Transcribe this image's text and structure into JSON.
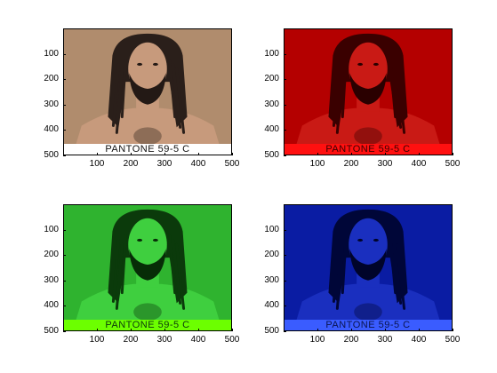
{
  "panels": [
    {
      "id": "original",
      "bg": "#b08c6d",
      "skin": "#c79a7c",
      "hair": "#2a1f1a",
      "beard": "#231915",
      "caption_bg": "#ffffff",
      "caption_color": "#111111",
      "caption": "PANTONE 59-5 C",
      "yticks": [
        "100",
        "200",
        "300",
        "400",
        "500"
      ],
      "xticks": [
        "100",
        "200",
        "300",
        "400",
        "500"
      ]
    },
    {
      "id": "red-channel",
      "bg": "#b40000",
      "skin": "#c91a15",
      "hair": "#3a0000",
      "beard": "#2a0000",
      "caption_bg": "#ff1010",
      "caption_color": "#3a0000",
      "caption": "PANTONE 59-5 C",
      "yticks": [
        "100",
        "200",
        "300",
        "400",
        "500"
      ],
      "xticks": [
        "100",
        "200",
        "300",
        "400",
        "500"
      ]
    },
    {
      "id": "green-channel",
      "bg": "#2fb32f",
      "skin": "#3fcf3f",
      "hair": "#0b3a0b",
      "beard": "#072c07",
      "caption_bg": "#6cff00",
      "caption_color": "#0c3a0c",
      "caption": "PANTONE 59-5 C",
      "yticks": [
        "100",
        "200",
        "300",
        "400",
        "500"
      ],
      "xticks": [
        "100",
        "200",
        "300",
        "400",
        "500"
      ]
    },
    {
      "id": "blue-channel",
      "bg": "#0a1ca3",
      "skin": "#1a2fbf",
      "hair": "#000638",
      "beard": "#00042a",
      "caption_bg": "#3a5cff",
      "caption_color": "#0a1450",
      "caption": "PANTONE 59-5 C",
      "yticks": [
        "100",
        "200",
        "300",
        "400",
        "500"
      ],
      "xticks": [
        "100",
        "200",
        "300",
        "400",
        "500"
      ]
    }
  ]
}
